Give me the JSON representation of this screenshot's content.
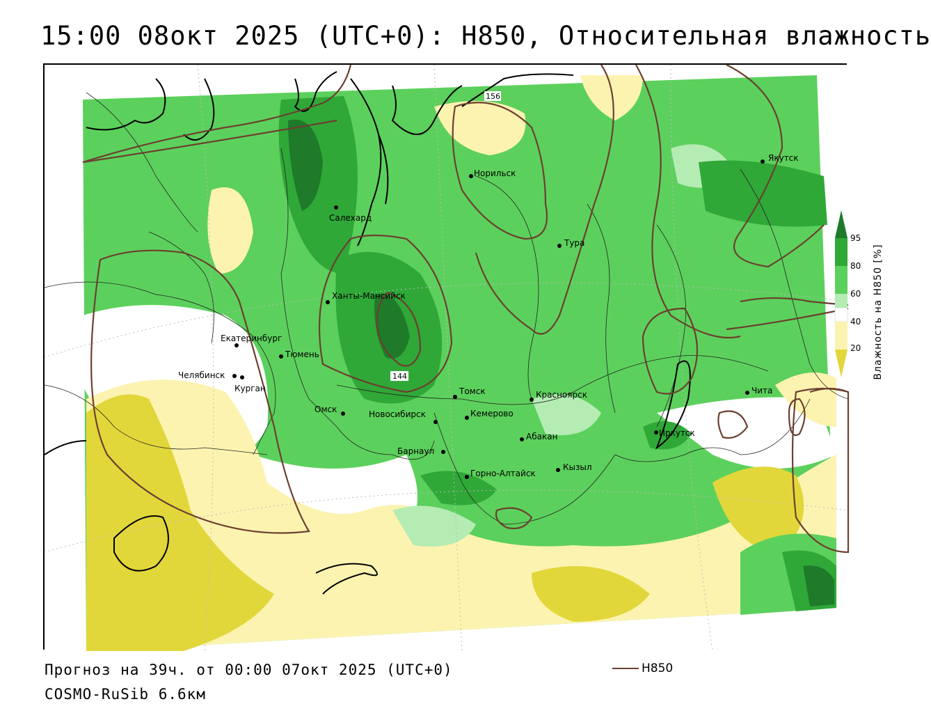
{
  "title": "15:00 08окт 2025 (UTC+0): H850, Относительная влажность",
  "forecast_line": "Прогноз на 39ч. от 00:00 07окт 2025 (UTC+0)",
  "model_line": "COSMO-RuSib 6.6км",
  "legend": {
    "label": "H850",
    "color": "#6b4030"
  },
  "colorbar": {
    "title": "Влажность на H850 [%]",
    "ticks": [
      "95",
      "80",
      "60",
      "40",
      "20"
    ],
    "colors": {
      "ge95": "#1f7a2a",
      "80_95": "#2fa838",
      "60_80": "#5cd05c",
      "50_60": "#b4ecb4",
      "40_50": "#ffffff",
      "20_40": "#fdf3b0",
      "lt20": "#e2d73a"
    }
  },
  "isohypses": {
    "labels": [
      "156",
      "144"
    ]
  },
  "cities": [
    {
      "name": "Якутск"
    },
    {
      "name": "Норильск"
    },
    {
      "name": "Салехард"
    },
    {
      "name": "Тура"
    },
    {
      "name": "Ханты-Мансийск"
    },
    {
      "name": "Екатеринбург"
    },
    {
      "name": "Тюмень"
    },
    {
      "name": "Челябинск"
    },
    {
      "name": "Курган"
    },
    {
      "name": "Томск"
    },
    {
      "name": "Красноярск"
    },
    {
      "name": "Чита"
    },
    {
      "name": "Омск"
    },
    {
      "name": "Новосибирск"
    },
    {
      "name": "Кемерово"
    },
    {
      "name": "Иркутск"
    },
    {
      "name": "Абакан"
    },
    {
      "name": "Барнаул"
    },
    {
      "name": "Кызыл"
    },
    {
      "name": "Горно-Алтайск"
    }
  ]
}
